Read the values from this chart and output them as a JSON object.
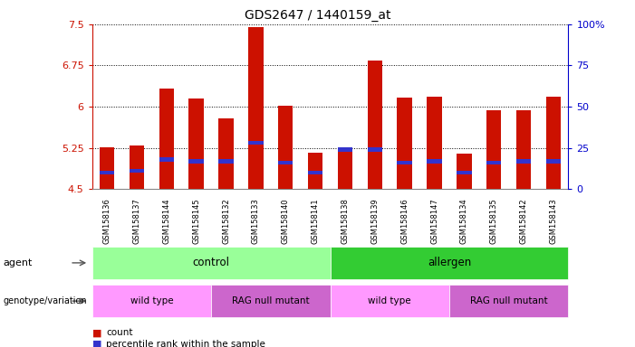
{
  "title": "GDS2647 / 1440159_at",
  "samples": [
    "GSM158136",
    "GSM158137",
    "GSM158144",
    "GSM158145",
    "GSM158132",
    "GSM158133",
    "GSM158140",
    "GSM158141",
    "GSM158138",
    "GSM158139",
    "GSM158146",
    "GSM158147",
    "GSM158134",
    "GSM158135",
    "GSM158142",
    "GSM158143"
  ],
  "count_values": [
    5.26,
    5.3,
    6.33,
    6.15,
    5.78,
    7.45,
    6.02,
    5.16,
    5.2,
    6.84,
    6.17,
    6.18,
    5.14,
    5.93,
    5.93,
    6.18
  ],
  "percentile_values": [
    10,
    11,
    18,
    17,
    17,
    28,
    16,
    10,
    24,
    24,
    16,
    17,
    10,
    16,
    17,
    17
  ],
  "bar_bottom": 4.5,
  "ylim_left": [
    4.5,
    7.5
  ],
  "ylim_right": [
    0,
    100
  ],
  "yticks_left": [
    4.5,
    5.25,
    6.0,
    6.75,
    7.5
  ],
  "yticks_left_labels": [
    "4.5",
    "5.25",
    "6",
    "6.75",
    "7.5"
  ],
  "yticks_right": [
    0,
    25,
    50,
    75,
    100
  ],
  "yticks_right_labels": [
    "0",
    "25",
    "50",
    "75",
    "100%"
  ],
  "bar_color": "#CC1100",
  "percentile_color": "#3333CC",
  "grid_color": "#000000",
  "agent_labels": [
    {
      "text": "control",
      "start": 0,
      "end": 7,
      "color": "#99FF99"
    },
    {
      "text": "allergen",
      "start": 8,
      "end": 15,
      "color": "#33CC33"
    }
  ],
  "genotype_labels": [
    {
      "text": "wild type",
      "start": 0,
      "end": 3,
      "color": "#FF99FF"
    },
    {
      "text": "RAG null mutant",
      "start": 4,
      "end": 7,
      "color": "#CC66CC"
    },
    {
      "text": "wild type",
      "start": 8,
      "end": 11,
      "color": "#FF99FF"
    },
    {
      "text": "RAG null mutant",
      "start": 12,
      "end": 15,
      "color": "#CC66CC"
    }
  ],
  "row_labels": [
    "agent",
    "genotype/variation"
  ],
  "legend_items": [
    {
      "label": "count",
      "color": "#CC1100"
    },
    {
      "label": "percentile rank within the sample",
      "color": "#3333CC"
    }
  ],
  "bar_width": 0.5,
  "title_fontsize": 10,
  "left_axis_color": "#CC1100",
  "right_axis_color": "#0000CC"
}
